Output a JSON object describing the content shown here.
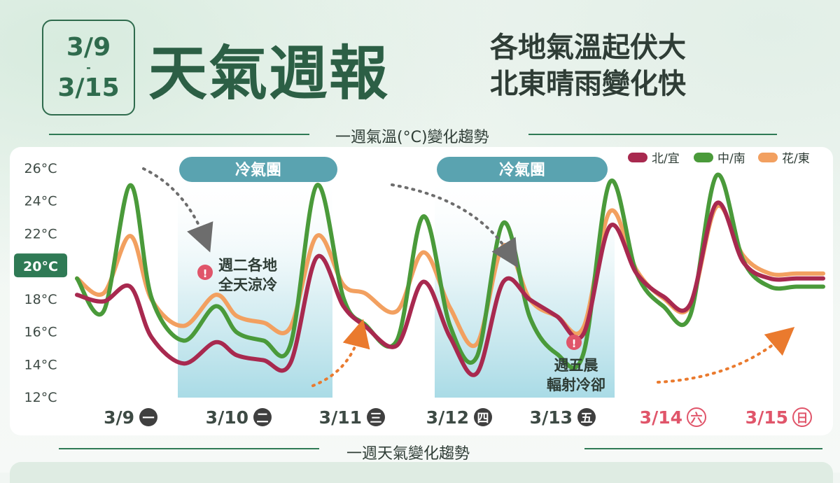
{
  "header": {
    "date_top": "3/9",
    "date_sep": "-",
    "date_bottom": "3/15",
    "title": "天氣週報",
    "subtitle_line1": "各地氣溫起伏大",
    "subtitle_line2": "北東晴雨變化快"
  },
  "sections": {
    "temp_trend": "一週氣溫(°C)變化趨勢",
    "weather_trend": "一週天氣變化趨勢"
  },
  "annotations": {
    "cold_mass_1": "冷氣團",
    "cold_mass_2": "冷氣團",
    "note_tue_line1": "週二各地",
    "note_tue_line2": "全天涼冷",
    "note_fri_line1": "週五晨",
    "note_fri_line2": "輻射冷卻",
    "alert_symbol": "!"
  },
  "colors": {
    "north": "#a8294f",
    "central": "#4a9a3a",
    "east": "#f2a060",
    "cold_band": "#bfe3ea",
    "pill": "#5aa3b0",
    "weekend": "#e0556a",
    "axis_highlight": "#2f7a55"
  },
  "chart_data": {
    "type": "line",
    "title": "一週氣溫(°C)變化趨勢",
    "ylabel": "°C",
    "ylim": [
      12,
      26
    ],
    "y_ticks": [
      {
        "value": 26,
        "label": "26°C"
      },
      {
        "value": 24,
        "label": "24°C"
      },
      {
        "value": 22,
        "label": "22°C"
      },
      {
        "value": 20,
        "label": "20°C",
        "highlight": true
      },
      {
        "value": 18,
        "label": "18°C"
      },
      {
        "value": 16,
        "label": "16°C"
      },
      {
        "value": 14,
        "label": "14°C"
      },
      {
        "value": 12,
        "label": "12°C"
      }
    ],
    "days": [
      {
        "date": "3/9",
        "weekday": "一",
        "weekend": false
      },
      {
        "date": "3/10",
        "weekday": "二",
        "weekend": false
      },
      {
        "date": "3/11",
        "weekday": "三",
        "weekend": false
      },
      {
        "date": "3/12",
        "weekday": "四",
        "weekend": false
      },
      {
        "date": "3/13",
        "weekday": "五",
        "weekend": false
      },
      {
        "date": "3/14",
        "weekday": "六",
        "weekend": true
      },
      {
        "date": "3/15",
        "weekday": "日",
        "weekend": true
      }
    ],
    "x": [
      0,
      0.5,
      1,
      1.4,
      2,
      2.6,
      3,
      3.5,
      4,
      4.5,
      5,
      5.4,
      6,
      6.5,
      7,
      7.5,
      8,
      8.5,
      9,
      9.5,
      10,
      10.5,
      11,
      11.5,
      12,
      12.5,
      13,
      13.5,
      14
    ],
    "series": [
      {
        "name": "北/宜",
        "color": "#a8294f",
        "values": [
          18.2,
          17.8,
          18.7,
          15.6,
          14.0,
          15.3,
          14.5,
          14.2,
          14.0,
          20.5,
          17.5,
          16.3,
          15.1,
          19.0,
          15.6,
          13.4,
          19.0,
          17.9,
          16.9,
          15.8,
          22.4,
          19.5,
          18.1,
          17.6,
          23.8,
          20.2,
          19.2,
          19.2,
          19.2
        ]
      },
      {
        "name": "中/南",
        "color": "#4a9a3a",
        "values": [
          19.2,
          17.2,
          24.9,
          18.0,
          15.4,
          17.5,
          15.9,
          15.4,
          15.1,
          24.9,
          18.0,
          16.4,
          15.4,
          23.0,
          16.3,
          14.4,
          22.6,
          16.8,
          14.6,
          14.6,
          25.1,
          19.5,
          17.5,
          16.9,
          25.5,
          20.3,
          18.7,
          18.7,
          18.7
        ]
      },
      {
        "name": "花/東",
        "color": "#f2a060",
        "values": [
          19.2,
          18.3,
          21.8,
          17.9,
          16.3,
          18.2,
          16.9,
          16.5,
          16.2,
          21.8,
          18.8,
          18.3,
          17.2,
          20.8,
          17.4,
          15.2,
          21.2,
          17.9,
          16.9,
          16.2,
          23.3,
          19.7,
          18.0,
          17.5,
          23.6,
          20.6,
          19.5,
          19.5,
          19.5
        ]
      }
    ],
    "legend_position": "top-right",
    "grid": false
  }
}
